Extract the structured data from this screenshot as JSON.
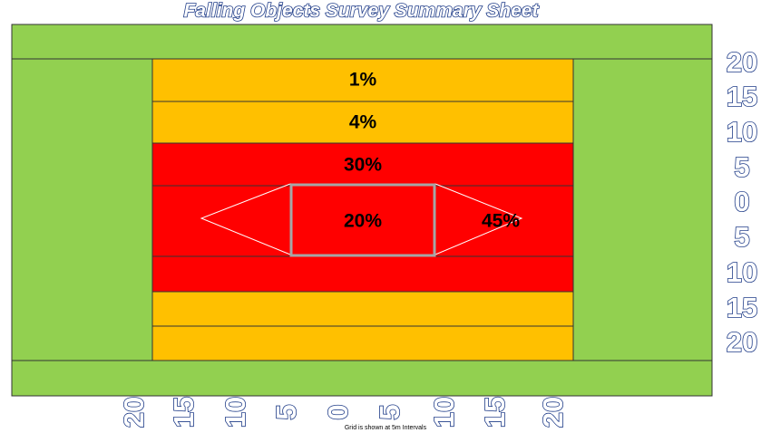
{
  "header": {
    "title": "Falling Objects Survey Summary Sheet"
  },
  "zones": [
    {
      "label": "1%"
    },
    {
      "label": "4%"
    },
    {
      "label": "30%"
    },
    {
      "label": "20%"
    },
    {
      "label": "45%"
    }
  ],
  "side_scale": [
    20,
    15,
    10,
    5,
    0,
    5,
    10,
    15,
    20
  ],
  "bottom_scale": [
    20,
    15,
    10,
    5,
    0,
    5,
    10,
    15,
    20
  ],
  "footnote": "Grid is shown at 5m Intervals"
}
